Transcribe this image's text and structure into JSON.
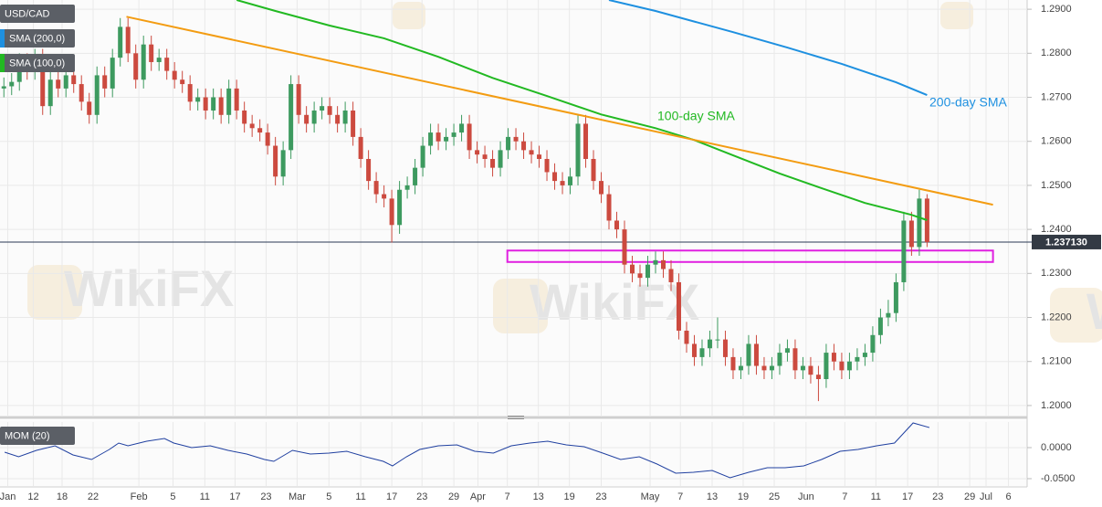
{
  "chart_data": [
    {
      "type": "candlestick",
      "xlim": [
        -0.5,
        131.9
      ],
      "ylim": [
        1.1977,
        1.2921
      ],
      "grid": true,
      "yticks": [
        {
          "value": 1.2,
          "label": "1.2000"
        },
        {
          "value": 1.21,
          "label": "1.2100"
        },
        {
          "value": 1.22,
          "label": "1.2200"
        },
        {
          "value": 1.23,
          "label": "1.2300"
        },
        {
          "value": 1.24,
          "label": "1.2400"
        },
        {
          "value": 1.25,
          "label": "1.2500"
        },
        {
          "value": 1.26,
          "label": "1.2600"
        },
        {
          "value": 1.27,
          "label": "1.2700"
        },
        {
          "value": 1.28,
          "label": "1.2800"
        },
        {
          "value": 1.29,
          "label": "1.2900"
        }
      ],
      "xticks": [
        {
          "value": 0.5,
          "label": "Jan"
        },
        {
          "value": 3.8,
          "label": "12"
        },
        {
          "value": 7.5,
          "label": "18"
        },
        {
          "value": 11.5,
          "label": "22"
        },
        {
          "value": 17.4,
          "label": "Feb"
        },
        {
          "value": 21.8,
          "label": "5"
        },
        {
          "value": 25.9,
          "label": "11"
        },
        {
          "value": 29.8,
          "label": "17"
        },
        {
          "value": 33.8,
          "label": "23"
        },
        {
          "value": 37.8,
          "label": "Mar"
        },
        {
          "value": 41.9,
          "label": "5"
        },
        {
          "value": 46,
          "label": "11"
        },
        {
          "value": 50,
          "label": "17"
        },
        {
          "value": 53.9,
          "label": "23"
        },
        {
          "value": 58,
          "label": "29"
        },
        {
          "value": 61.1,
          "label": "Apr"
        },
        {
          "value": 64.9,
          "label": "7"
        },
        {
          "value": 68.9,
          "label": "13"
        },
        {
          "value": 72.9,
          "label": "19"
        },
        {
          "value": 77,
          "label": "23"
        },
        {
          "value": 83.3,
          "label": "May"
        },
        {
          "value": 87.2,
          "label": "7"
        },
        {
          "value": 91.3,
          "label": "13"
        },
        {
          "value": 95.3,
          "label": "19"
        },
        {
          "value": 99.3,
          "label": "25"
        },
        {
          "value": 103.4,
          "label": "Jun"
        },
        {
          "value": 108.4,
          "label": "7"
        },
        {
          "value": 112.4,
          "label": "11"
        },
        {
          "value": 116.5,
          "label": "17"
        },
        {
          "value": 120.4,
          "label": "23"
        },
        {
          "value": 124.5,
          "label": "29"
        },
        {
          "value": 126.6,
          "label": "Jul"
        },
        {
          "value": 129.5,
          "label": "6"
        }
      ],
      "series": [
        {
          "name": "USD/CAD",
          "up_color": "#3d9a5f",
          "down_color": "#cc4a3f",
          "open": [
            1.272,
            1.2725,
            1.2735,
            1.278,
            1.276,
            1.279,
            1.268,
            1.274,
            1.272,
            1.275,
            1.273,
            1.269,
            1.266,
            1.275,
            1.272,
            1.279,
            1.286,
            1.28,
            1.274,
            1.282,
            1.278,
            1.279,
            1.276,
            1.274,
            1.273,
            1.269,
            1.27,
            1.267,
            1.27,
            1.266,
            1.272,
            1.267,
            1.264,
            1.263,
            1.262,
            1.259,
            1.252,
            1.258,
            1.273,
            1.266,
            1.264,
            1.267,
            1.268,
            1.266,
            1.264,
            1.267,
            1.261,
            1.256,
            1.251,
            1.248,
            1.247,
            1.241,
            1.249,
            1.25,
            1.254,
            1.259,
            1.262,
            1.26,
            1.261,
            1.262,
            1.264,
            1.258,
            1.257,
            1.256,
            1.254,
            1.258,
            1.261,
            1.26,
            1.258,
            1.257,
            1.256,
            1.253,
            1.251,
            1.25,
            1.252,
            1.264,
            1.256,
            1.251,
            1.248,
            1.242,
            1.24,
            1.232,
            1.23,
            1.229,
            1.232,
            1.233,
            1.231,
            1.228,
            1.217,
            1.214,
            1.211,
            1.213,
            1.215,
            1.215,
            1.211,
            1.208,
            1.209,
            1.214,
            1.209,
            1.208,
            1.209,
            1.212,
            1.213,
            1.208,
            1.209,
            1.207,
            1.206,
            1.212,
            1.21,
            1.208,
            1.21,
            1.211,
            1.212,
            1.216,
            1.22,
            1.221,
            1.228,
            1.242,
            1.236,
            1.247
          ],
          "high": [
            1.2745,
            1.2755,
            1.28,
            1.28,
            1.281,
            1.281,
            1.276,
            1.276,
            1.277,
            1.277,
            1.275,
            1.271,
            1.277,
            1.277,
            1.281,
            1.288,
            1.288,
            1.282,
            1.284,
            1.284,
            1.281,
            1.281,
            1.278,
            1.276,
            1.275,
            1.272,
            1.272,
            1.272,
            1.272,
            1.274,
            1.274,
            1.269,
            1.266,
            1.265,
            1.264,
            1.261,
            1.26,
            1.275,
            1.275,
            1.268,
            1.269,
            1.27,
            1.27,
            1.268,
            1.269,
            1.269,
            1.263,
            1.258,
            1.253,
            1.25,
            1.249,
            1.251,
            1.252,
            1.256,
            1.261,
            1.264,
            1.264,
            1.263,
            1.264,
            1.266,
            1.266,
            1.26,
            1.259,
            1.258,
            1.26,
            1.263,
            1.263,
            1.262,
            1.26,
            1.259,
            1.258,
            1.255,
            1.253,
            1.254,
            1.266,
            1.266,
            1.258,
            1.253,
            1.25,
            1.244,
            1.242,
            1.234,
            1.232,
            1.234,
            1.235,
            1.235,
            1.233,
            1.23,
            1.219,
            1.216,
            1.215,
            1.217,
            1.22,
            1.217,
            1.213,
            1.211,
            1.216,
            1.216,
            1.211,
            1.211,
            1.214,
            1.215,
            1.215,
            1.211,
            1.211,
            1.209,
            1.214,
            1.214,
            1.212,
            1.212,
            1.213,
            1.214,
            1.218,
            1.222,
            1.224,
            1.23,
            1.244,
            1.244,
            1.249,
            1.248
          ],
          "low": [
            1.27,
            1.2705,
            1.2715,
            1.274,
            1.274,
            1.266,
            1.266,
            1.27,
            1.27,
            1.271,
            1.267,
            1.264,
            1.264,
            1.27,
            1.27,
            1.277,
            1.278,
            1.272,
            1.272,
            1.276,
            1.276,
            1.274,
            1.272,
            1.271,
            1.267,
            1.267,
            1.265,
            1.265,
            1.264,
            1.264,
            1.265,
            1.262,
            1.261,
            1.26,
            1.257,
            1.25,
            1.25,
            1.256,
            1.264,
            1.262,
            1.262,
            1.265,
            1.264,
            1.262,
            1.262,
            1.259,
            1.254,
            1.249,
            1.246,
            1.245,
            1.237,
            1.239,
            1.247,
            1.248,
            1.252,
            1.257,
            1.258,
            1.258,
            1.259,
            1.26,
            1.256,
            1.255,
            1.254,
            1.252,
            1.252,
            1.256,
            1.258,
            1.256,
            1.255,
            1.254,
            1.251,
            1.249,
            1.248,
            1.248,
            1.25,
            1.254,
            1.249,
            1.246,
            1.24,
            1.238,
            1.23,
            1.228,
            1.227,
            1.227,
            1.23,
            1.229,
            1.226,
            1.215,
            1.212,
            1.209,
            1.209,
            1.211,
            1.213,
            1.209,
            1.206,
            1.206,
            1.207,
            1.207,
            1.206,
            1.206,
            1.207,
            1.21,
            1.206,
            1.206,
            1.205,
            1.201,
            1.204,
            1.208,
            1.206,
            1.206,
            1.208,
            1.209,
            1.21,
            1.214,
            1.218,
            1.219,
            1.226,
            1.234,
            1.234,
            1.236
          ],
          "close": [
            1.2725,
            1.2735,
            1.278,
            1.276,
            1.279,
            1.268,
            1.274,
            1.272,
            1.275,
            1.273,
            1.269,
            1.266,
            1.275,
            1.272,
            1.279,
            1.286,
            1.28,
            1.274,
            1.282,
            1.278,
            1.279,
            1.276,
            1.274,
            1.273,
            1.269,
            1.27,
            1.267,
            1.27,
            1.266,
            1.272,
            1.267,
            1.264,
            1.263,
            1.262,
            1.259,
            1.252,
            1.258,
            1.273,
            1.266,
            1.264,
            1.267,
            1.268,
            1.266,
            1.264,
            1.267,
            1.261,
            1.256,
            1.251,
            1.248,
            1.247,
            1.241,
            1.249,
            1.25,
            1.254,
            1.259,
            1.262,
            1.26,
            1.261,
            1.262,
            1.264,
            1.258,
            1.257,
            1.256,
            1.254,
            1.258,
            1.261,
            1.26,
            1.258,
            1.257,
            1.256,
            1.253,
            1.251,
            1.25,
            1.252,
            1.264,
            1.256,
            1.251,
            1.248,
            1.242,
            1.24,
            1.232,
            1.23,
            1.229,
            1.232,
            1.233,
            1.231,
            1.228,
            1.217,
            1.214,
            1.211,
            1.213,
            1.215,
            1.215,
            1.211,
            1.208,
            1.209,
            1.214,
            1.209,
            1.208,
            1.209,
            1.212,
            1.213,
            1.208,
            1.209,
            1.207,
            1.206,
            1.212,
            1.21,
            1.208,
            1.21,
            1.211,
            1.212,
            1.216,
            1.22,
            1.221,
            1.228,
            1.242,
            1.236,
            1.247,
            1.2371
          ]
        },
        {
          "name": "SMA (200,0)",
          "color": "#1e90e0",
          "x": [
            78,
            84,
            94,
            101,
            108,
            115,
            119
          ],
          "values": [
            1.2921,
            1.2896,
            1.2848,
            1.2813,
            1.2776,
            1.2734,
            1.2705
          ]
        },
        {
          "name": "SMA (100,0)",
          "color": "#22b922",
          "x": [
            30,
            35,
            42,
            49,
            56,
            63,
            70,
            77,
            84,
            89,
            94,
            100,
            105,
            111,
            117,
            119
          ],
          "values": [
            1.2921,
            1.2896,
            1.2863,
            1.2834,
            1.2792,
            1.2744,
            1.2703,
            1.2661,
            1.263,
            1.2603,
            1.2568,
            1.2527,
            1.2496,
            1.246,
            1.2433,
            1.2421
          ]
        },
        {
          "color": "#f39c12",
          "x": [
            15.8,
            127.5
          ],
          "values": [
            1.2883,
            1.2456
          ]
        }
      ],
      "zone": {
        "x": [
          64.9,
          127.5
        ],
        "values": [
          1.2326,
          1.2352
        ],
        "color": "#e020e0"
      },
      "last_price": {
        "value": 1.23713,
        "label": "1.237130"
      },
      "annotations": [
        {
          "text": "100-day SMA",
          "color": "#22b922"
        },
        {
          "text": "200-day SMA",
          "color": "#1e90e0"
        }
      ],
      "watermark": "WikiFX"
    },
    {
      "type": "line",
      "xlim": [
        -0.5,
        131.9
      ],
      "ylim": [
        -0.0618,
        0.0412
      ],
      "yticks": [
        {
          "value": 0,
          "label": "0.0000"
        },
        {
          "value": -0.05,
          "label": "-0.0500"
        }
      ],
      "series": [
        {
          "name": "MOM (20)",
          "color": "#2040a0",
          "x": [
            0.1,
            1.9,
            4.2,
            6.6,
            8.9,
            11.3,
            13.6,
            14.8,
            16,
            18.4,
            20.7,
            21.9,
            24.2,
            26.6,
            28.9,
            31.3,
            33.6,
            34.8,
            37.2,
            39.5,
            41.9,
            44.2,
            46.6,
            48.9,
            50.1,
            51.9,
            53.6,
            56,
            58.4,
            60.7,
            63.1,
            65.4,
            67.8,
            70.1,
            72.5,
            74.8,
            77.2,
            79.5,
            81.9,
            84.2,
            86.6,
            88.9,
            91.3,
            93.6,
            96,
            98.4,
            100.7,
            103.1,
            105.4,
            107.8,
            110.1,
            112.5,
            114.8,
            117.2,
            119.3
          ],
          "values": [
            -0.0074,
            -0.0147,
            -0.0044,
            0.0029,
            -0.0118,
            -0.0191,
            -0.0029,
            0.0074,
            0.0029,
            0.0103,
            0.0147,
            0.0074,
            0,
            0.0029,
            -0.0044,
            -0.0103,
            -0.0191,
            -0.0221,
            -0.0044,
            -0.0103,
            -0.0088,
            -0.0059,
            -0.0147,
            -0.0221,
            -0.0294,
            -0.0147,
            -0.0029,
            0.0029,
            0.0044,
            -0.0059,
            -0.0088,
            0.0029,
            0.0074,
            0.0103,
            0.0044,
            0.0015,
            -0.0088,
            -0.0191,
            -0.0147,
            -0.0265,
            -0.0412,
            -0.0397,
            -0.0368,
            -0.0485,
            -0.0397,
            -0.0324,
            -0.0324,
            -0.0294,
            -0.0191,
            -0.0059,
            -0.0029,
            0.0029,
            0.0074,
            0.0397,
            0.0324
          ]
        }
      ]
    }
  ]
}
